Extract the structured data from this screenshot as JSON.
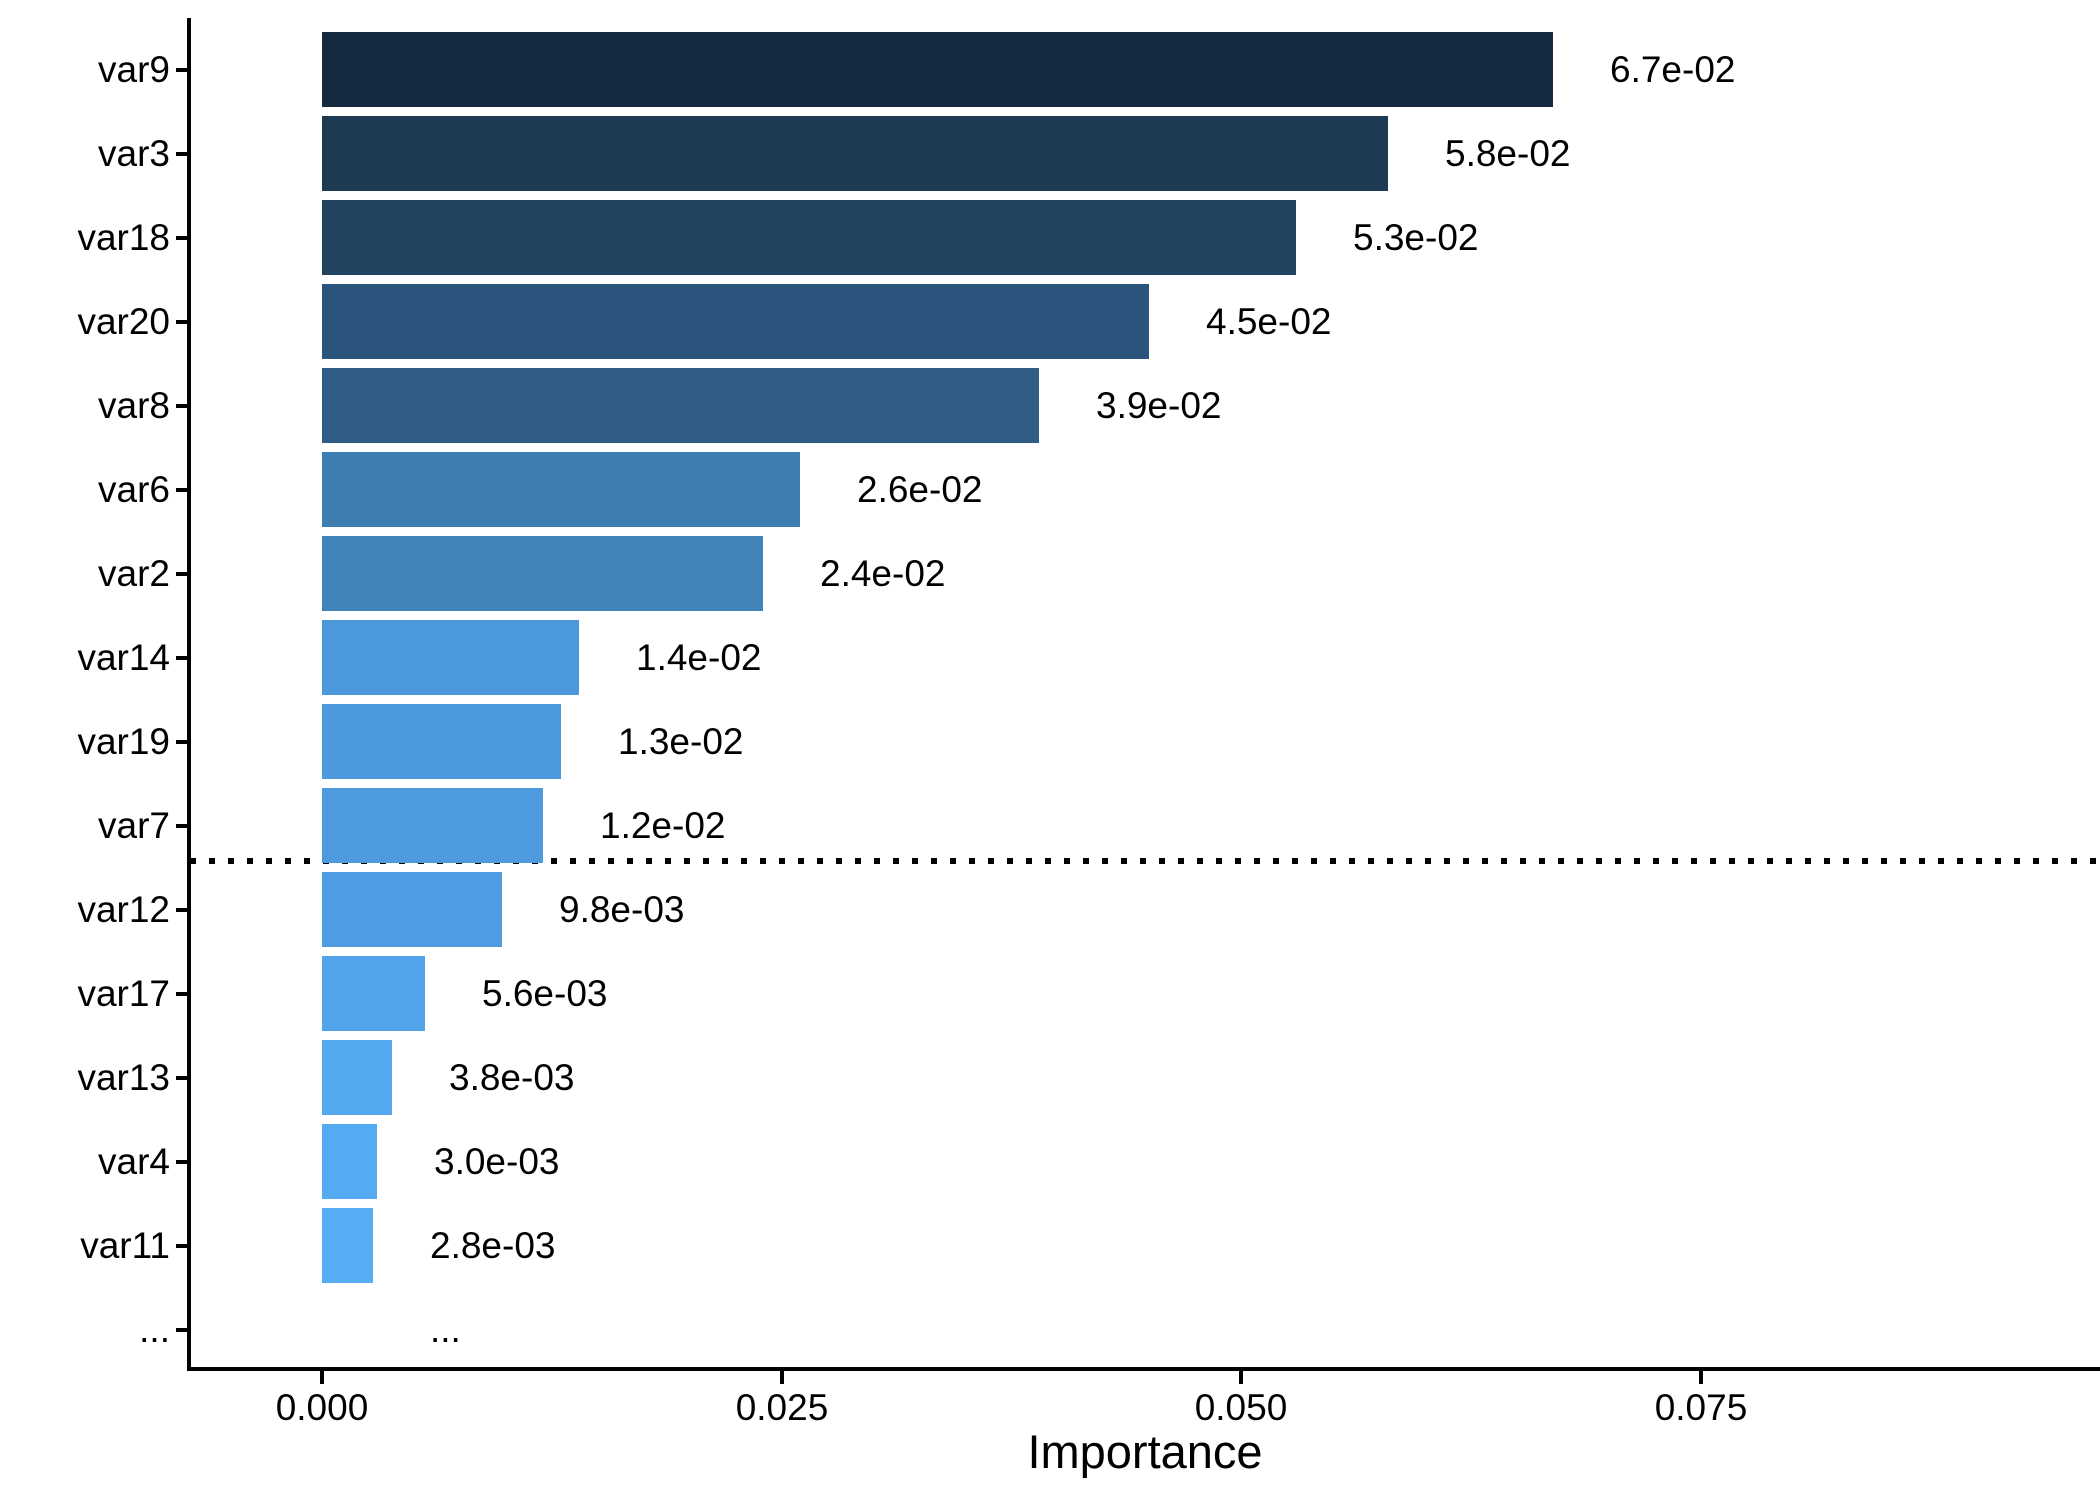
{
  "chart_data": {
    "type": "bar",
    "orientation": "horizontal",
    "title": "",
    "xlabel": "Importance",
    "ylabel": "",
    "grid": false,
    "legend": false,
    "background": "#ffffff",
    "axis_color": "#000000",
    "xlim": [
      -0.0072,
      0.0967
    ],
    "x_ticks": [
      {
        "value": 0.0,
        "label": "0.000"
      },
      {
        "value": 0.025,
        "label": "0.025"
      },
      {
        "value": 0.05,
        "label": "0.050"
      },
      {
        "value": 0.075,
        "label": "0.075"
      }
    ],
    "color_scale": {
      "low_value_color": "#56B1F7",
      "high_value_color": "#132B43",
      "note": "continuous blue gradient, darker = higher importance"
    },
    "threshold_separator": {
      "style": "dotted",
      "color": "#000000",
      "between_rows": [
        "var7",
        "var12"
      ]
    },
    "rows": [
      {
        "label": "var9",
        "value": 0.067,
        "value_label": "6.7e-02",
        "color": "#152A40"
      },
      {
        "label": "var3",
        "value": 0.058,
        "value_label": "5.8e-02",
        "color": "#1D3A54"
      },
      {
        "label": "var18",
        "value": 0.053,
        "value_label": "5.3e-02",
        "color": "#224360"
      },
      {
        "label": "var20",
        "value": 0.045,
        "value_label": "4.5e-02",
        "color": "#2A547B"
      },
      {
        "label": "var8",
        "value": 0.039,
        "value_label": "3.9e-02",
        "color": "#2F5D86"
      },
      {
        "label": "var6",
        "value": 0.026,
        "value_label": "2.6e-02",
        "color": "#3C7DB2"
      },
      {
        "label": "var2",
        "value": 0.024,
        "value_label": "2.4e-02",
        "color": "#4084BA"
      },
      {
        "label": "var14",
        "value": 0.014,
        "value_label": "1.4e-02",
        "color": "#4B98DB"
      },
      {
        "label": "var19",
        "value": 0.013,
        "value_label": "1.3e-02",
        "color": "#4C99DD"
      },
      {
        "label": "var7",
        "value": 0.012,
        "value_label": "1.2e-02",
        "color": "#4D9ADE"
      },
      {
        "label": "var12",
        "value": 0.0098,
        "value_label": "9.8e-03",
        "color": "#4E9CE1"
      },
      {
        "label": "var17",
        "value": 0.0056,
        "value_label": "5.6e-03",
        "color": "#52A4EA"
      },
      {
        "label": "var13",
        "value": 0.0038,
        "value_label": "3.8e-03",
        "color": "#54A9EF"
      },
      {
        "label": "var4",
        "value": 0.003,
        "value_label": "3.0e-03",
        "color": "#55ABF1"
      },
      {
        "label": "var11",
        "value": 0.0028,
        "value_label": "2.8e-03",
        "color": "#56ADF4"
      },
      {
        "label": "...",
        "value": null,
        "value_label": "..."
      }
    ]
  }
}
